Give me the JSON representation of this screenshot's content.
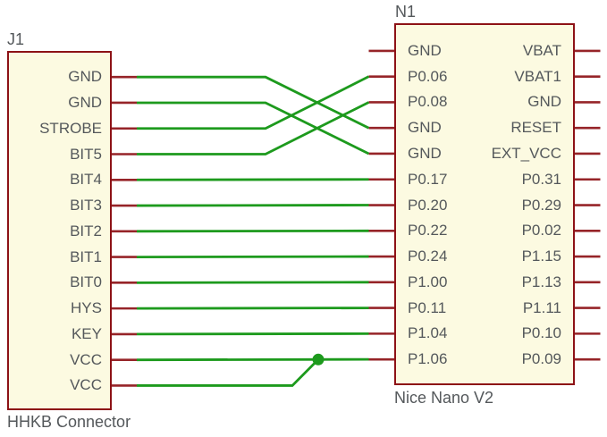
{
  "colors": {
    "background": "#ffffff",
    "component_fill": "#fcfae1",
    "component_outline": "#8d1216",
    "pin": "#962428",
    "wire": "#1d9a1d",
    "junction": "#1d9a1d",
    "text": "#54585b"
  },
  "components": {
    "j1": {
      "ref": "J1",
      "value": "HHKB Connector",
      "pins_right": [
        "GND",
        "GND",
        "STROBE",
        "BIT5",
        "BIT4",
        "BIT3",
        "BIT2",
        "BIT1",
        "BIT0",
        "HYS",
        "KEY",
        "VCC",
        "VCC"
      ]
    },
    "n1": {
      "ref": "N1",
      "value": "Nice Nano V2",
      "pins_left": [
        "GND",
        "P0.06",
        "P0.08",
        "GND",
        "GND",
        "P0.17",
        "P0.20",
        "P0.22",
        "P0.24",
        "P1.00",
        "P0.11",
        "P1.04",
        "P1.06"
      ],
      "pins_right": [
        "VBAT",
        "VBAT1",
        "GND",
        "RESET",
        "EXT_VCC",
        "P0.31",
        "P0.29",
        "P0.02",
        "P1.15",
        "P1.13",
        "P1.11",
        "P0.10",
        "P0.09"
      ]
    }
  },
  "connections": [
    {
      "from": "J1:GND",
      "from_pin": 0,
      "to": "N1:GND",
      "to_pin": 3,
      "route": "cross"
    },
    {
      "from": "J1:GND",
      "from_pin": 1,
      "to": "N1:GND",
      "to_pin": 4,
      "route": "cross"
    },
    {
      "from": "J1:STROBE",
      "from_pin": 2,
      "to": "N1:P0.06",
      "to_pin": 1,
      "route": "cross"
    },
    {
      "from": "J1:BIT5",
      "from_pin": 3,
      "to": "N1:P0.08",
      "to_pin": 2,
      "route": "cross"
    },
    {
      "from": "J1:BIT4",
      "from_pin": 4,
      "to": "N1:P0.17",
      "to_pin": 5,
      "route": "straight"
    },
    {
      "from": "J1:BIT3",
      "from_pin": 5,
      "to": "N1:P0.20",
      "to_pin": 6,
      "route": "straight"
    },
    {
      "from": "J1:BIT2",
      "from_pin": 6,
      "to": "N1:P0.22",
      "to_pin": 7,
      "route": "straight"
    },
    {
      "from": "J1:BIT1",
      "from_pin": 7,
      "to": "N1:P0.24",
      "to_pin": 8,
      "route": "straight"
    },
    {
      "from": "J1:BIT0",
      "from_pin": 8,
      "to": "N1:P1.00",
      "to_pin": 9,
      "route": "straight"
    },
    {
      "from": "J1:HYS",
      "from_pin": 9,
      "to": "N1:P0.11",
      "to_pin": 10,
      "route": "straight"
    },
    {
      "from": "J1:KEY",
      "from_pin": 10,
      "to": "N1:P1.04",
      "to_pin": 11,
      "route": "straight"
    },
    {
      "from": "J1:VCC",
      "from_pin": 11,
      "to": "N1:P1.06",
      "to_pin": 12,
      "route": "straight",
      "junction": true
    },
    {
      "from": "J1:VCC",
      "from_pin": 12,
      "to": "junction",
      "route": "junction_feed"
    }
  ],
  "unconnected_pins": {
    "n1_left": [
      "GND"
    ],
    "n1_right": [
      "VBAT",
      "VBAT1",
      "GND",
      "RESET",
      "EXT_VCC",
      "P0.31",
      "P0.29",
      "P0.02",
      "P1.15",
      "P1.13",
      "P1.11",
      "P0.10",
      "P0.09"
    ]
  }
}
